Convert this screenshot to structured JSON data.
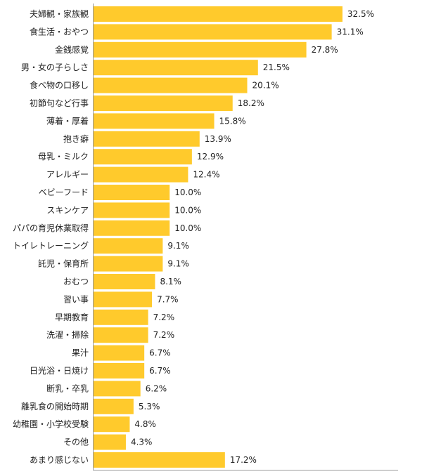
{
  "chart_data": {
    "type": "bar",
    "orientation": "horizontal",
    "categories": [
      "夫婦観・家族観",
      "食生活・おやつ",
      "金銭感覚",
      "男・女の子らしさ",
      "食べ物の口移し",
      "初節句など行事",
      "薄着・厚着",
      "抱き癖",
      "母乳・ミルク",
      "アレルギー",
      "ベビーフード",
      "スキンケア",
      "パパの育児休業取得",
      "トイレトレーニング",
      "託児・保育所",
      "おむつ",
      "習い事",
      "早期教育",
      "洗濯・掃除",
      "果汁",
      "日光浴・日焼け",
      "断乳・卒乳",
      "離乳食の開始時期",
      "幼稚園・小学校受験",
      "その他",
      "あまり感じない"
    ],
    "values": [
      32.5,
      31.1,
      27.8,
      21.5,
      20.1,
      18.2,
      15.8,
      13.9,
      12.9,
      12.4,
      10.0,
      10.0,
      10.0,
      9.1,
      9.1,
      8.1,
      7.7,
      7.2,
      7.2,
      6.7,
      6.7,
      6.2,
      5.3,
      4.8,
      4.3,
      17.2
    ],
    "value_labels": [
      "32.5%",
      "31.1%",
      "27.8%",
      "21.5%",
      "20.1%",
      "18.2%",
      "15.8%",
      "13.9%",
      "12.9%",
      "12.4%",
      "10.0%",
      "10.0%",
      "10.0%",
      "9.1%",
      "9.1%",
      "8.1%",
      "7.7%",
      "7.2%",
      "7.2%",
      "6.7%",
      "6.7%",
      "6.2%",
      "5.3%",
      "4.8%",
      "4.3%",
      "17.2%"
    ],
    "title": "",
    "xlabel": "",
    "ylabel": "",
    "xlim": [
      0,
      35
    ],
    "grid": false,
    "legend": "none",
    "colors": {
      "bar": "#FFCA2C",
      "axis": "#999999",
      "text": "#222222"
    }
  }
}
